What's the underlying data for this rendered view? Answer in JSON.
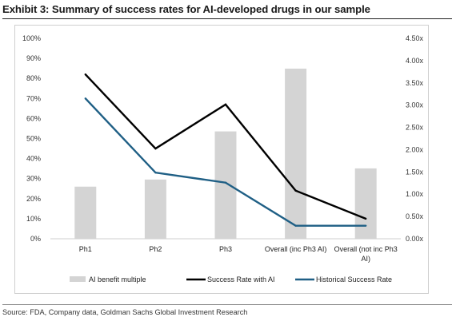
{
  "title": "Exhibit 3: Summary of success rates for AI-developed drugs in our sample",
  "source": "Source: FDA, Company data, Goldman Sachs Global Investment Research",
  "chart_data": {
    "type": "bar",
    "title": "Exhibit 3: Summary of success rates for AI-developed drugs in our sample",
    "categories": [
      [
        "Ph1"
      ],
      [
        "Ph2"
      ],
      [
        "Ph3"
      ],
      [
        "Overall (inc Ph3 AI)"
      ],
      [
        "Overall (not inc Ph3",
        "AI)"
      ]
    ],
    "left_axis": {
      "ylim": [
        0,
        100
      ],
      "ticks": [
        "0%",
        "10%",
        "20%",
        "30%",
        "40%",
        "50%",
        "60%",
        "70%",
        "80%",
        "90%",
        "100%"
      ]
    },
    "right_axis": {
      "ylim": [
        0,
        4.5
      ],
      "ticks": [
        "0.00x",
        "0.50x",
        "1.00x",
        "1.50x",
        "2.00x",
        "2.50x",
        "3.00x",
        "3.50x",
        "4.00x",
        "4.50x"
      ]
    },
    "series": [
      {
        "name": "AI benefit multiple",
        "type": "bar",
        "axis": "right",
        "color": "#d4d4d4",
        "values": [
          1.17,
          1.33,
          2.41,
          3.82,
          1.58
        ]
      },
      {
        "name": "Success Rate with AI",
        "type": "line",
        "axis": "left",
        "color": "#000000",
        "values": [
          82,
          45,
          67,
          24,
          10
        ]
      },
      {
        "name": "Historical Success Rate",
        "type": "line",
        "axis": "left",
        "color": "#1f5f85",
        "values": [
          70,
          33,
          28,
          6.5,
          6.5
        ]
      }
    ],
    "legend_position": "bottom",
    "grid": false
  }
}
